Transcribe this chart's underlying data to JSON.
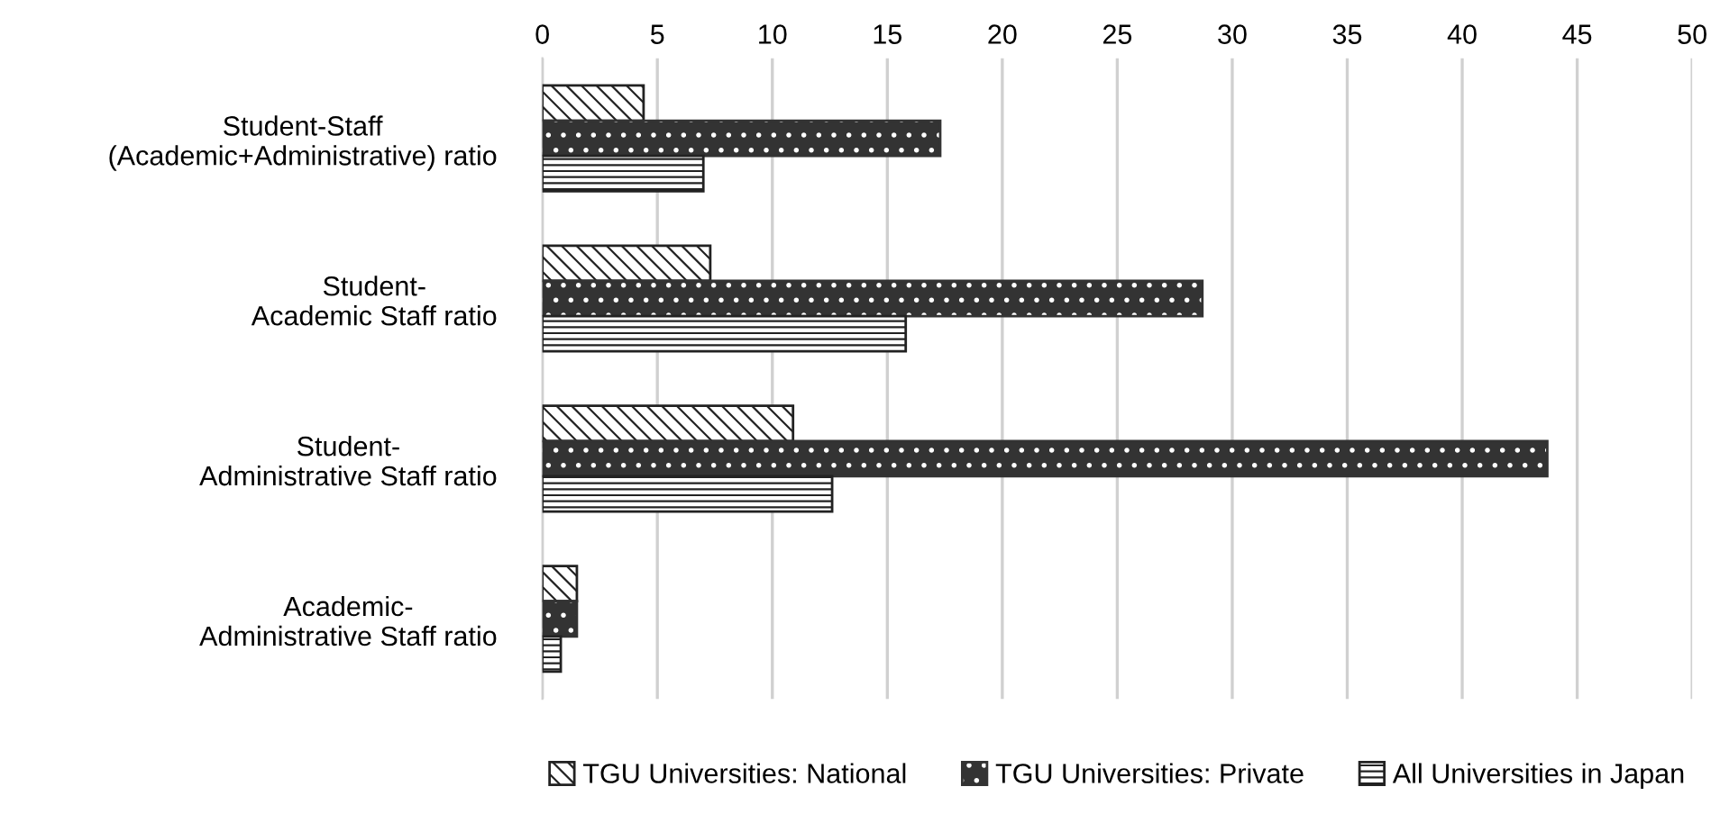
{
  "chart_data": {
    "type": "bar",
    "orientation": "horizontal",
    "categories": [
      "Student-Staff\n(Academic+Administrative) ratio",
      "Student-\nAcademic Staff ratio",
      "Student-\nAdministrative Staff ratio",
      "Academic-\nAdministrative Staff ratio"
    ],
    "series": [
      {
        "name": "TGU Universities: National",
        "color": "#222222",
        "values": [
          4.4,
          7.3,
          10.9,
          1.5
        ]
      },
      {
        "name": "TGU Universities: Private",
        "color": "#333333",
        "values": [
          17.3,
          28.7,
          43.7,
          1.5
        ]
      },
      {
        "name": "All Universities in Japan",
        "color": "#222222",
        "values": [
          7.0,
          15.8,
          12.6,
          0.8
        ]
      }
    ],
    "xlim": [
      0,
      50
    ],
    "xticks": [
      0,
      5,
      10,
      15,
      20,
      25,
      30,
      35,
      40,
      45,
      50
    ],
    "grid": "x",
    "legend": "bottom"
  }
}
